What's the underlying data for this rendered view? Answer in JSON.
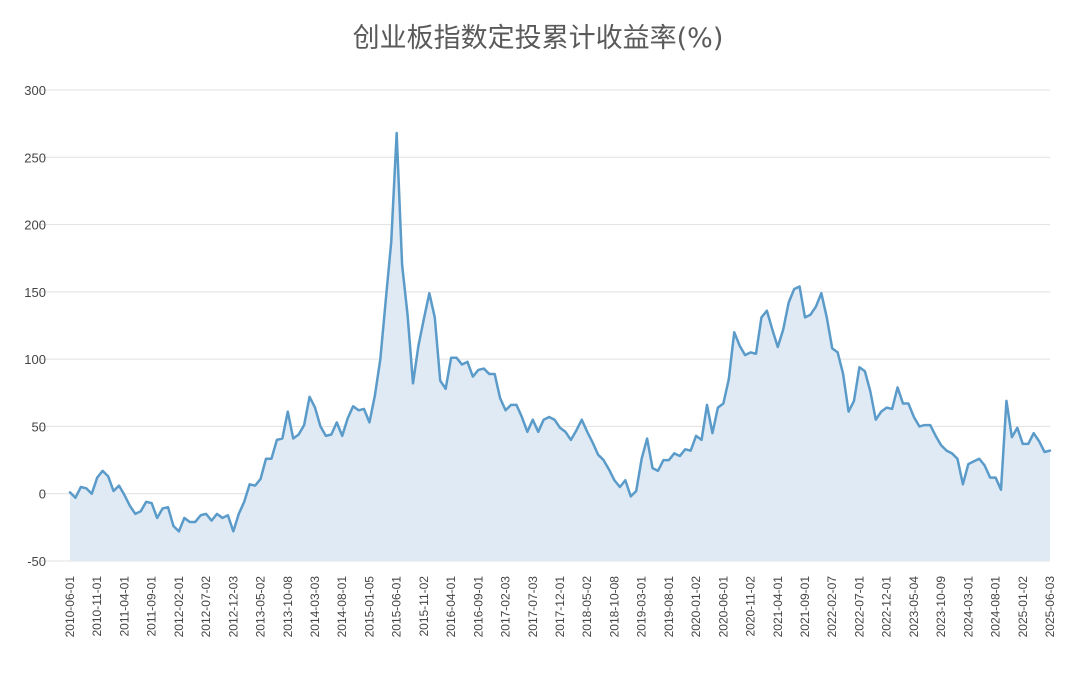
{
  "chart_data": {
    "type": "area",
    "title": "创业板指数定投累计收益率(%)",
    "xlabel": "",
    "ylabel": "",
    "ylim": [
      -50,
      300
    ],
    "yticks": [
      300,
      250,
      200,
      150,
      100,
      50,
      0,
      -50
    ],
    "grid": true,
    "legend": "none",
    "x_tick_labels": [
      "2010-06-01",
      "2010-11-01",
      "2011-04-01",
      "2011-09-01",
      "2012-02-01",
      "2012-07-02",
      "2012-12-03",
      "2013-05-02",
      "2013-10-08",
      "2014-03-03",
      "2014-08-01",
      "2015-01-05",
      "2015-06-01",
      "2015-11-02",
      "2016-04-01",
      "2016-09-01",
      "2017-02-03",
      "2017-07-03",
      "2017-12-01",
      "2018-05-02",
      "2018-10-08",
      "2019-03-01",
      "2019-08-01",
      "2020-01-02",
      "2020-06-01",
      "2020-11-02",
      "2021-04-01",
      "2021-09-01",
      "2022-02-07",
      "2022-07-01",
      "2022-12-01",
      "2023-05-04",
      "2023-10-09",
      "2024-03-01",
      "2024-08-01",
      "2025-01-02",
      "2025-06-03"
    ],
    "series": [
      {
        "values": [
          1,
          -3,
          5,
          4,
          0,
          12,
          17,
          13,
          2,
          6,
          -1,
          -9,
          -15,
          -13,
          -6,
          -7,
          -18,
          -11,
          -10,
          -24,
          -28,
          -18,
          -21,
          -21,
          -16,
          -15,
          -20,
          -15,
          -18,
          -16,
          -28,
          -15,
          -6,
          7,
          6,
          11,
          26,
          26,
          40,
          41,
          61,
          41,
          44,
          51,
          72,
          64,
          50,
          43,
          44,
          53,
          43,
          56,
          65,
          62,
          63,
          53,
          73,
          100,
          144,
          187,
          268,
          170,
          133,
          82,
          110,
          130,
          149,
          131,
          84,
          78,
          101,
          101,
          96,
          98,
          87,
          92,
          93,
          89,
          89,
          71,
          62,
          66,
          66,
          57,
          46,
          55,
          46,
          55,
          57,
          55,
          49,
          46,
          40,
          47,
          55,
          46,
          38,
          29,
          25,
          18,
          10,
          5,
          10,
          -2,
          2,
          26,
          41,
          19,
          17,
          25,
          25,
          30,
          28,
          33,
          32,
          43,
          40,
          66,
          45,
          64,
          67,
          85,
          120,
          110,
          103,
          105,
          104,
          131,
          136,
          122,
          109,
          122,
          142,
          152,
          154,
          131,
          133,
          139,
          149,
          131,
          108,
          105,
          89,
          61,
          69,
          94,
          91,
          76,
          55,
          61,
          64,
          63,
          79,
          67,
          67,
          57,
          50,
          51,
          51,
          43,
          36,
          32,
          30,
          26,
          7,
          22,
          24,
          26,
          21,
          12,
          12,
          3,
          69,
          42,
          49,
          37,
          37,
          45,
          39,
          31,
          32
        ]
      }
    ],
    "colors": {
      "line": "#5b9bc9",
      "fill": "#dfeaf5"
    }
  }
}
